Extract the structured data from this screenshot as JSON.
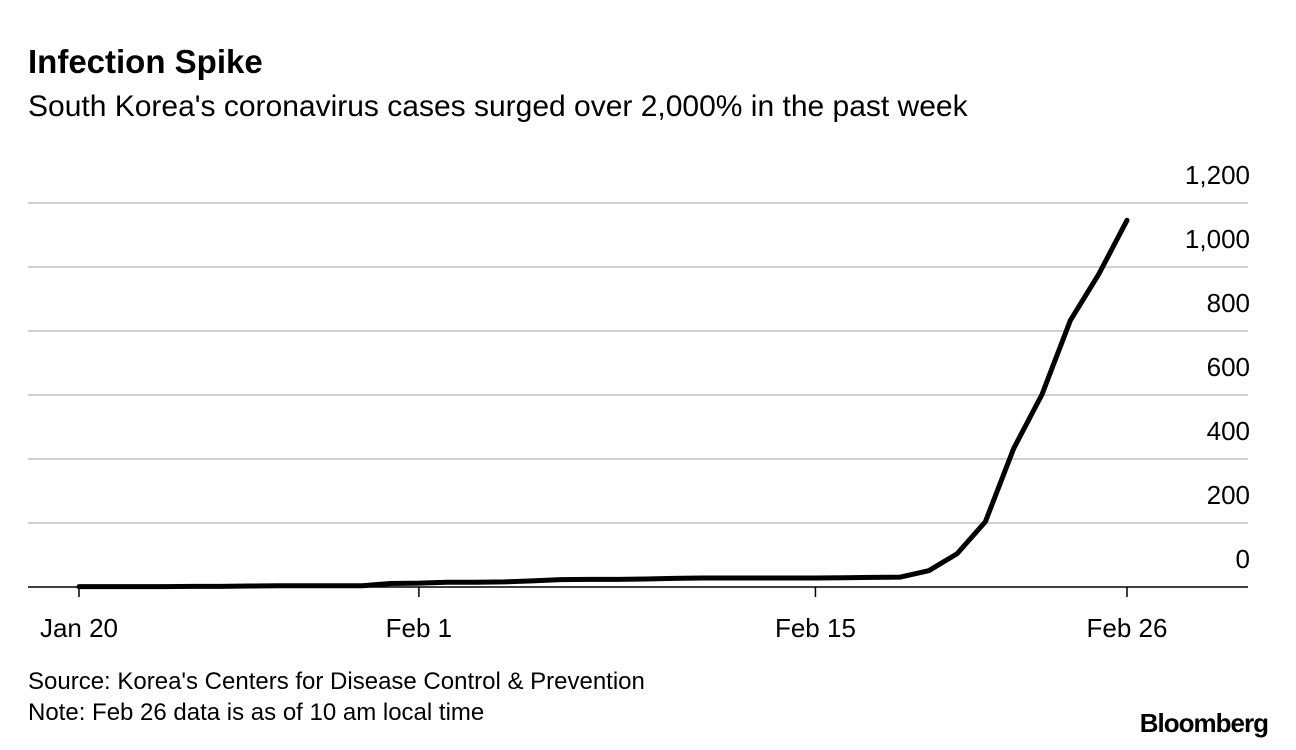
{
  "chart_data": {
    "type": "line",
    "title": "Infection Spike",
    "subtitle": "South Korea's coronavirus cases surged over 2,000% in the past week",
    "categories": [
      "Jan 20",
      null,
      null,
      null,
      null,
      null,
      null,
      null,
      null,
      null,
      null,
      null,
      "Feb 1",
      null,
      null,
      null,
      null,
      null,
      null,
      null,
      null,
      null,
      null,
      null,
      null,
      null,
      "Feb 15",
      null,
      null,
      null,
      null,
      null,
      null,
      null,
      null,
      null,
      null,
      "Feb 26"
    ],
    "series": [
      {
        "name": "Cases",
        "color": "#000000",
        "values": [
          1,
          1,
          1,
          1,
          2,
          2,
          3,
          4,
          4,
          4,
          4,
          11,
          12,
          15,
          15,
          16,
          19,
          23,
          24,
          24,
          25,
          27,
          28,
          28,
          28,
          28,
          28,
          29,
          30,
          31,
          51,
          104,
          204,
          433,
          602,
          833,
          977,
          1146
        ]
      }
    ],
    "ylim": [
      0,
      1200
    ],
    "yticks": [
      0,
      200,
      400,
      600,
      800,
      {
        "value": 1000,
        "label": "1,000"
      },
      {
        "value": 1200,
        "label": "1,200"
      }
    ],
    "grid": true,
    "source": "Source: Korea's Centers for Disease Control & Prevention",
    "note": "Note: Feb 26 data is as of 10 am local time",
    "brand": "Bloomberg"
  }
}
